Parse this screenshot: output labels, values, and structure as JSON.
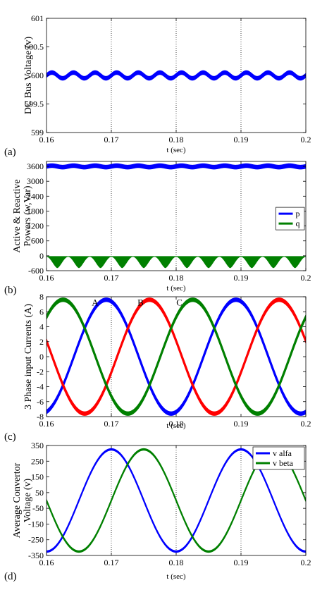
{
  "colors": {
    "blue": "#0000ff",
    "red": "#ff0000",
    "green": "#008000",
    "axis": "#000000",
    "grid": "#000000"
  },
  "chart_data": [
    {
      "id": "a",
      "type": "line",
      "panel_label": "(a)",
      "xlabel": "t (sec)",
      "ylabel": "DC Bus Voltage (v)",
      "xlim": [
        0.16,
        0.2
      ],
      "ylim": [
        599,
        601
      ],
      "x_ticks": [
        "0.16",
        "0.17",
        "0.18",
        "0.19",
        "0.2"
      ],
      "y_ticks": [
        "601",
        "600.5",
        "600",
        "599.5",
        "599"
      ],
      "grid_x": [
        0.17,
        0.18,
        0.19
      ],
      "series": [
        {
          "color": "blue",
          "kind": "band",
          "mean": 600.0,
          "ripple": 0.05,
          "band": 0.03,
          "freq": 300
        }
      ]
    },
    {
      "id": "b",
      "type": "line",
      "panel_label": "(b)",
      "xlabel": "t (sec)",
      "ylabel": "Active & Reactive Powers (w,Var)",
      "xlim": [
        0.16,
        0.2
      ],
      "ylim": [
        -600,
        3800
      ],
      "x_ticks": [
        "0.16",
        "0.17",
        "0.18",
        "0.19",
        "0.2"
      ],
      "y_ticks": [
        "3600",
        "3000",
        "2400",
        "1800",
        "1200",
        "600",
        "0",
        "-600"
      ],
      "legend": {
        "placement": "right",
        "entries": [
          {
            "label": "p",
            "color": "blue"
          },
          {
            "label": "q",
            "color": "green"
          }
        ]
      },
      "grid_x": [
        0.17,
        0.18,
        0.19
      ],
      "series": [
        {
          "color": "blue",
          "kind": "band",
          "mean": 3600,
          "ripple": 30,
          "band": 70,
          "freq": 300
        },
        {
          "color": "green",
          "kind": "scallop",
          "top": -30,
          "bottom": -480,
          "freq": 300
        }
      ]
    },
    {
      "id": "c",
      "type": "line",
      "panel_label": "(c)",
      "xlabel": "t (sec)",
      "ylabel": "3 Phase input Currents (A)",
      "xlim": [
        0.16,
        0.2
      ],
      "ylim": [
        -8,
        8
      ],
      "x_ticks": [
        "0.16",
        "0.17",
        "0.18",
        "0.19",
        "0.2"
      ],
      "y_ticks": [
        "8",
        "6",
        "4",
        "2",
        "0",
        "-2",
        "-4",
        "-6",
        "-8"
      ],
      "annotations": [
        {
          "text": "A",
          "x": 0.1675,
          "y": 7.2
        },
        {
          "text": "B",
          "x": 0.1745,
          "y": 7.2
        },
        {
          "text": "C",
          "x": 0.1805,
          "y": 7.2
        }
      ],
      "grid_x": [
        0.17
      ],
      "series": [
        {
          "color": "blue",
          "kind": "sine",
          "amp": 7.6,
          "freq": 50,
          "phase_deg": -76,
          "band": 0.22
        },
        {
          "color": "red",
          "kind": "sine",
          "amp": 7.6,
          "freq": 50,
          "phase_deg": 164,
          "band": 0.22
        },
        {
          "color": "green",
          "kind": "sine",
          "amp": 7.6,
          "freq": 50,
          "phase_deg": 44,
          "band": 0.22
        }
      ]
    },
    {
      "id": "d",
      "type": "line",
      "panel_label": "(d)",
      "xlabel": "t (sec)",
      "ylabel": "Average Convertor Voltage (v)",
      "xlim": [
        0.16,
        0.2
      ],
      "ylim": [
        -350,
        350
      ],
      "x_ticks": [
        "0.16",
        "0.17",
        "0.18",
        "0.19",
        "0.2"
      ],
      "y_ticks": [
        "350",
        "250",
        "150",
        "50",
        "-50",
        "-150",
        "-250",
        "-350"
      ],
      "legend": {
        "placement": "top-right",
        "entries": [
          {
            "label": "v alfa",
            "color": "blue"
          },
          {
            "label": "v beta",
            "color": "green"
          }
        ]
      },
      "grid_x": [
        0.17,
        0.18,
        0.19
      ],
      "series": [
        {
          "color": "blue",
          "kind": "sine",
          "amp": 325,
          "freq": 50,
          "phase_deg": -90,
          "band": 4
        },
        {
          "color": "green",
          "kind": "sine",
          "amp": 325,
          "freq": 50,
          "phase_deg": 180,
          "band": 4
        }
      ]
    }
  ]
}
